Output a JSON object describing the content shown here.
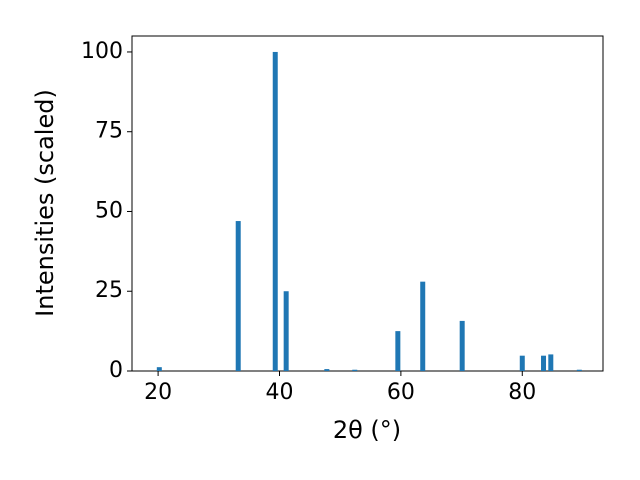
{
  "chart_data": {
    "type": "bar",
    "x_label": "2θ (°)",
    "y_label": "Intensities (scaled)",
    "x": [
      20.2,
      33.2,
      39.3,
      41.1,
      47.8,
      52.4,
      59.5,
      63.6,
      70.1,
      80.0,
      83.5,
      84.7,
      89.4
    ],
    "values": [
      1.2,
      47,
      100,
      25,
      0.6,
      0.4,
      12.5,
      28,
      15.7,
      4.8,
      4.8,
      5.2,
      0.4
    ],
    "color": "#1f77b4",
    "xlim": [
      15.7,
      93.3
    ],
    "xticks": [
      20,
      40,
      60,
      80
    ],
    "ylim": [
      0,
      105
    ],
    "yticks": [
      0,
      25,
      50,
      75,
      100
    ],
    "grid": false
  }
}
